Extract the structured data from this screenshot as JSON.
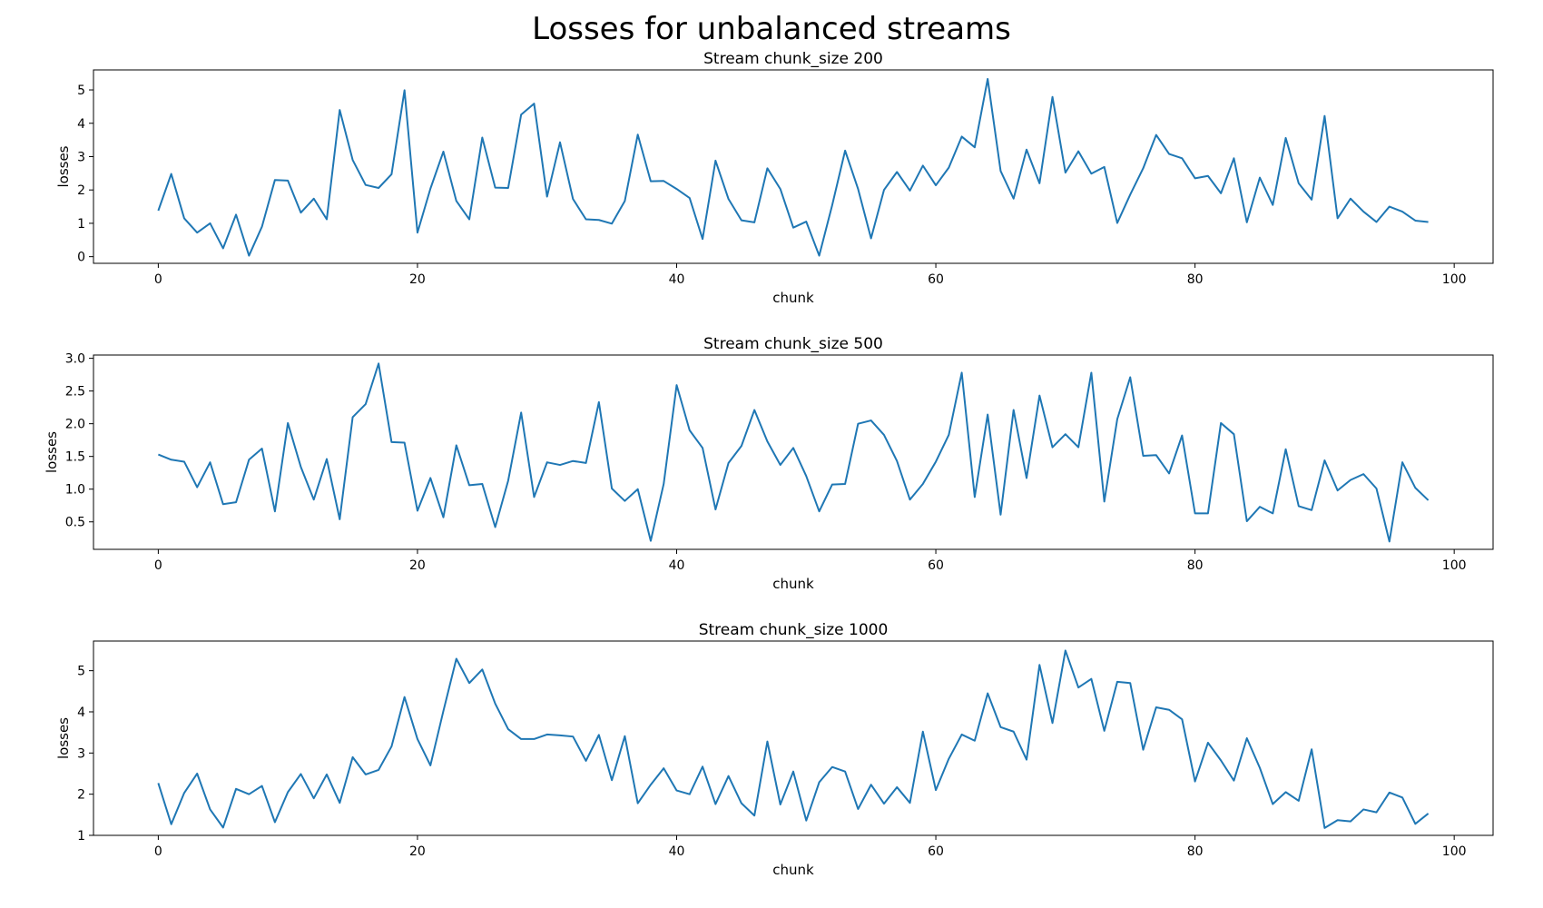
{
  "figure": {
    "title": "Losses for unbalanced streams"
  },
  "colors": {
    "line": "#1f77b4",
    "axes": "#000000"
  },
  "chart_data": [
    {
      "type": "line",
      "title": "Stream chunk_size 200",
      "xlabel": "chunk",
      "ylabel": "losses",
      "xlim": [
        -5,
        103
      ],
      "ylim": [
        -0.2,
        5.6
      ],
      "xticks": [
        0,
        20,
        40,
        60,
        80,
        100
      ],
      "yticks": [
        0,
        1,
        2,
        3,
        4,
        5
      ],
      "ytick_labels": [
        "0",
        "1",
        "2",
        "3",
        "4",
        "5"
      ],
      "grid": false,
      "series": [
        {
          "values": [
            1.38,
            2.48,
            1.15,
            0.72,
            1.0,
            0.25,
            1.26,
            0.03,
            0.9,
            2.3,
            2.28,
            1.32,
            1.74,
            1.12,
            4.4,
            2.9,
            2.15,
            2.06,
            2.47,
            4.99,
            0.72,
            2.04,
            3.15,
            1.67,
            1.12,
            3.57,
            2.07,
            2.06,
            4.26,
            4.59,
            1.8,
            3.43,
            1.73,
            1.12,
            1.1,
            0.99,
            1.67,
            3.66,
            2.26,
            2.27,
            2.03,
            1.76,
            0.53,
            2.88,
            1.73,
            1.09,
            1.03,
            2.65,
            2.03,
            0.87,
            1.05,
            0.03,
            1.54,
            3.18,
            2.03,
            0.55,
            2.0,
            2.54,
            1.98,
            2.73,
            2.14,
            2.67,
            3.6,
            3.28,
            5.33,
            2.57,
            1.74,
            3.21,
            2.2,
            4.79,
            2.52,
            3.16,
            2.49,
            2.69,
            1.01,
            1.86,
            2.65,
            3.65,
            3.08,
            2.95,
            2.35,
            2.42,
            1.9,
            2.95,
            1.03,
            2.37,
            1.55,
            3.56,
            2.2,
            1.71,
            4.22,
            1.15,
            1.74,
            1.35,
            1.04,
            1.5,
            1.35,
            1.08,
            1.04
          ]
        }
      ]
    },
    {
      "type": "line",
      "title": "Stream chunk_size 500",
      "xlabel": "chunk",
      "ylabel": "losses",
      "xlim": [
        -5,
        103
      ],
      "ylim": [
        0.08,
        3.05
      ],
      "xticks": [
        0,
        20,
        40,
        60,
        80,
        100
      ],
      "yticks": [
        0.5,
        1.0,
        1.5,
        2.0,
        2.5,
        3.0
      ],
      "ytick_labels": [
        "0.5",
        "1.0",
        "1.5",
        "2.0",
        "2.5",
        "3.0"
      ],
      "grid": false,
      "series": [
        {
          "values": [
            1.53,
            1.45,
            1.42,
            1.03,
            1.41,
            0.77,
            0.8,
            1.45,
            1.62,
            0.66,
            2.01,
            1.34,
            0.84,
            1.46,
            0.54,
            2.1,
            2.3,
            2.92,
            1.72,
            1.71,
            0.67,
            1.17,
            0.57,
            1.67,
            1.06,
            1.08,
            0.42,
            1.13,
            2.17,
            0.88,
            1.41,
            1.37,
            1.43,
            1.4,
            2.33,
            1.01,
            0.82,
            1.0,
            0.21,
            1.08,
            2.59,
            1.9,
            1.63,
            0.69,
            1.4,
            1.66,
            2.21,
            1.73,
            1.37,
            1.63,
            1.2,
            0.66,
            1.07,
            1.08,
            2.0,
            2.05,
            1.83,
            1.43,
            0.84,
            1.08,
            1.42,
            1.83,
            2.78,
            0.88,
            2.14,
            0.61,
            2.21,
            1.17,
            2.43,
            1.64,
            1.84,
            1.64,
            2.78,
            0.81,
            2.07,
            2.71,
            1.51,
            1.52,
            1.24,
            1.82,
            0.63,
            0.63,
            2.01,
            1.84,
            0.51,
            0.73,
            0.63,
            1.61,
            0.74,
            0.68,
            1.44,
            0.98,
            1.14,
            1.23,
            1.01,
            0.2,
            1.41,
            1.02,
            0.83
          ]
        }
      ]
    },
    {
      "type": "line",
      "title": "Stream chunk_size 1000",
      "xlabel": "chunk",
      "ylabel": "losses",
      "xlim": [
        -5,
        103
      ],
      "ylim": [
        1.0,
        5.72
      ],
      "xticks": [
        0,
        20,
        40,
        60,
        80,
        100
      ],
      "yticks": [
        1,
        2,
        3,
        4,
        5
      ],
      "ytick_labels": [
        "1",
        "2",
        "3",
        "4",
        "5"
      ],
      "grid": false,
      "series": [
        {
          "values": [
            2.27,
            1.27,
            2.03,
            2.5,
            1.63,
            1.19,
            2.13,
            2.0,
            2.2,
            1.32,
            2.05,
            2.49,
            1.9,
            2.48,
            1.79,
            2.9,
            2.48,
            2.59,
            3.16,
            4.36,
            3.34,
            2.7,
            4.02,
            5.29,
            4.7,
            5.03,
            4.2,
            3.58,
            3.34,
            3.34,
            3.45,
            3.43,
            3.4,
            2.81,
            3.44,
            2.34,
            3.41,
            1.78,
            2.23,
            2.63,
            2.09,
            2.0,
            2.67,
            1.76,
            2.44,
            1.78,
            1.48,
            3.28,
            1.75,
            2.55,
            1.36,
            2.29,
            2.66,
            2.55,
            1.64,
            2.23,
            1.77,
            2.17,
            1.79,
            3.52,
            2.1,
            2.86,
            3.45,
            3.3,
            4.45,
            3.63,
            3.52,
            2.84,
            5.14,
            3.73,
            5.49,
            4.59,
            4.8,
            3.54,
            4.73,
            4.7,
            3.08,
            4.11,
            4.05,
            3.82,
            2.31,
            3.25,
            2.82,
            2.33,
            3.36,
            2.64,
            1.76,
            2.05,
            1.84,
            3.09,
            1.18,
            1.37,
            1.34,
            1.63,
            1.56,
            2.04,
            1.92,
            1.28,
            1.53
          ]
        }
      ]
    }
  ]
}
